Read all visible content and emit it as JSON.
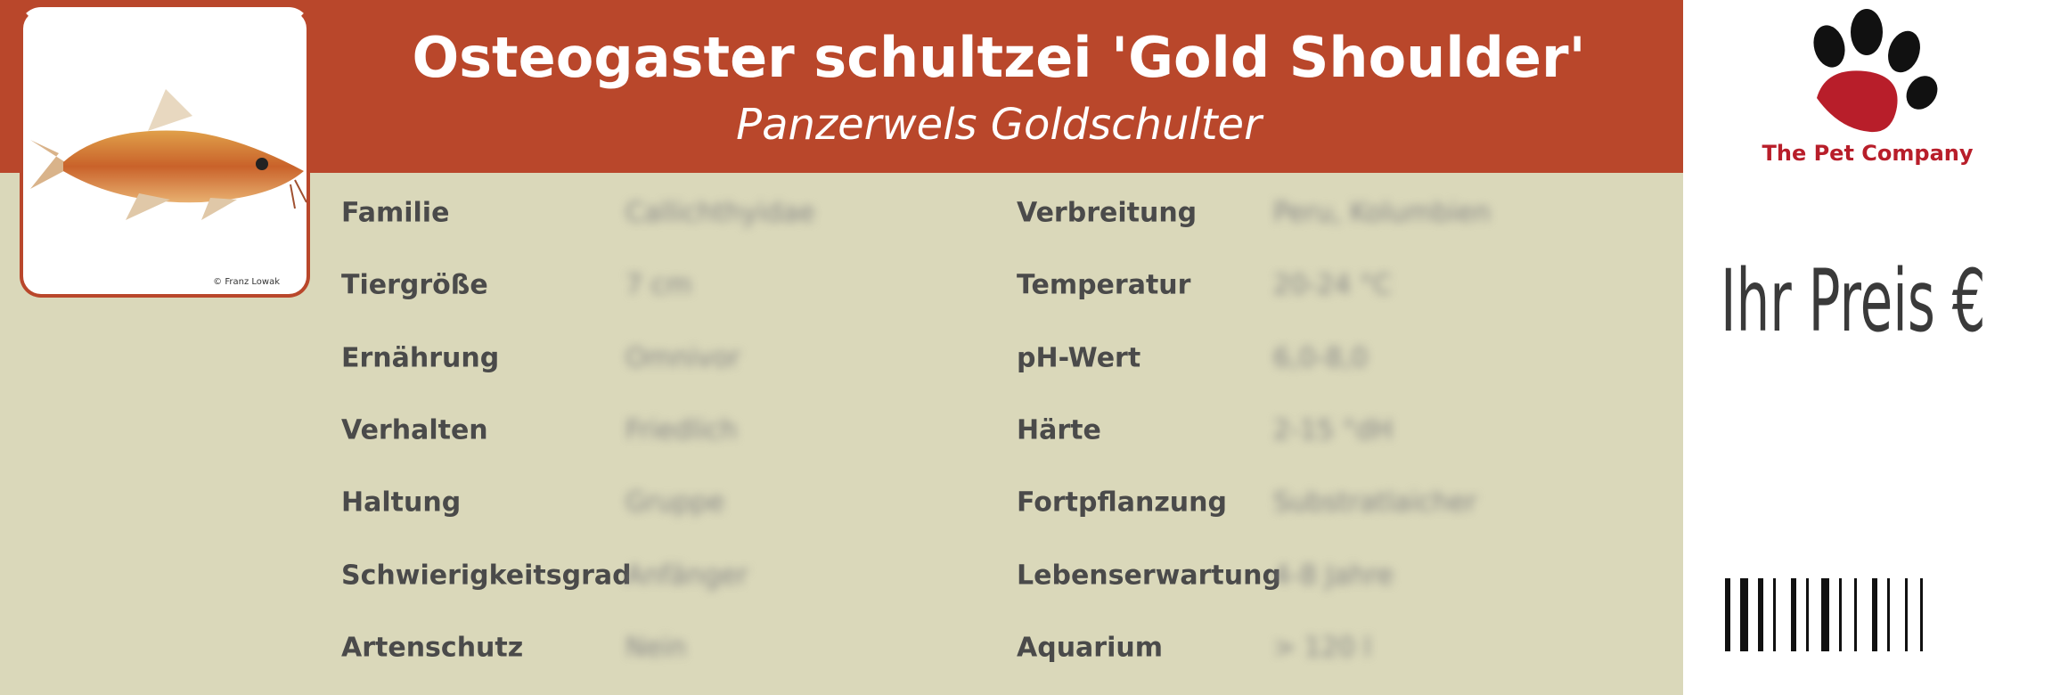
{
  "header": {
    "title": "Osteogaster schultzei 'Gold Shoulder'",
    "subtitle": "Panzerwels Goldschulter"
  },
  "photo": {
    "credit": "© Franz Lowak"
  },
  "traits": {
    "left": [
      {
        "label": "Familie",
        "value": "Callichthyidae"
      },
      {
        "label": "Tiergröße",
        "value": "7 cm"
      },
      {
        "label": "Ernährung",
        "value": "Omnivor"
      },
      {
        "label": "Verhalten",
        "value": "Friedlich"
      },
      {
        "label": "Haltung",
        "value": "Gruppe"
      },
      {
        "label": "Schwierigkeitsgrad",
        "value": "Anfänger"
      },
      {
        "label": "Artenschutz",
        "value": "Nein"
      }
    ],
    "right": [
      {
        "label": "Verbreitung",
        "value": "Peru, Kolumbien"
      },
      {
        "label": "Temperatur",
        "value": "20-24 °C"
      },
      {
        "label": "pH-Wert",
        "value": "6,0-8,0"
      },
      {
        "label": "Härte",
        "value": "2-15 °dH"
      },
      {
        "label": "Fortpflanzung",
        "value": "Substratlaicher"
      },
      {
        "label": "Lebenserwartung",
        "value": "4-8 Jahre"
      },
      {
        "label": "Aquarium",
        "value": "> 120 l"
      }
    ]
  },
  "brand": {
    "name": "The Pet Company"
  },
  "price": {
    "label": "Ihr Preis €"
  }
}
